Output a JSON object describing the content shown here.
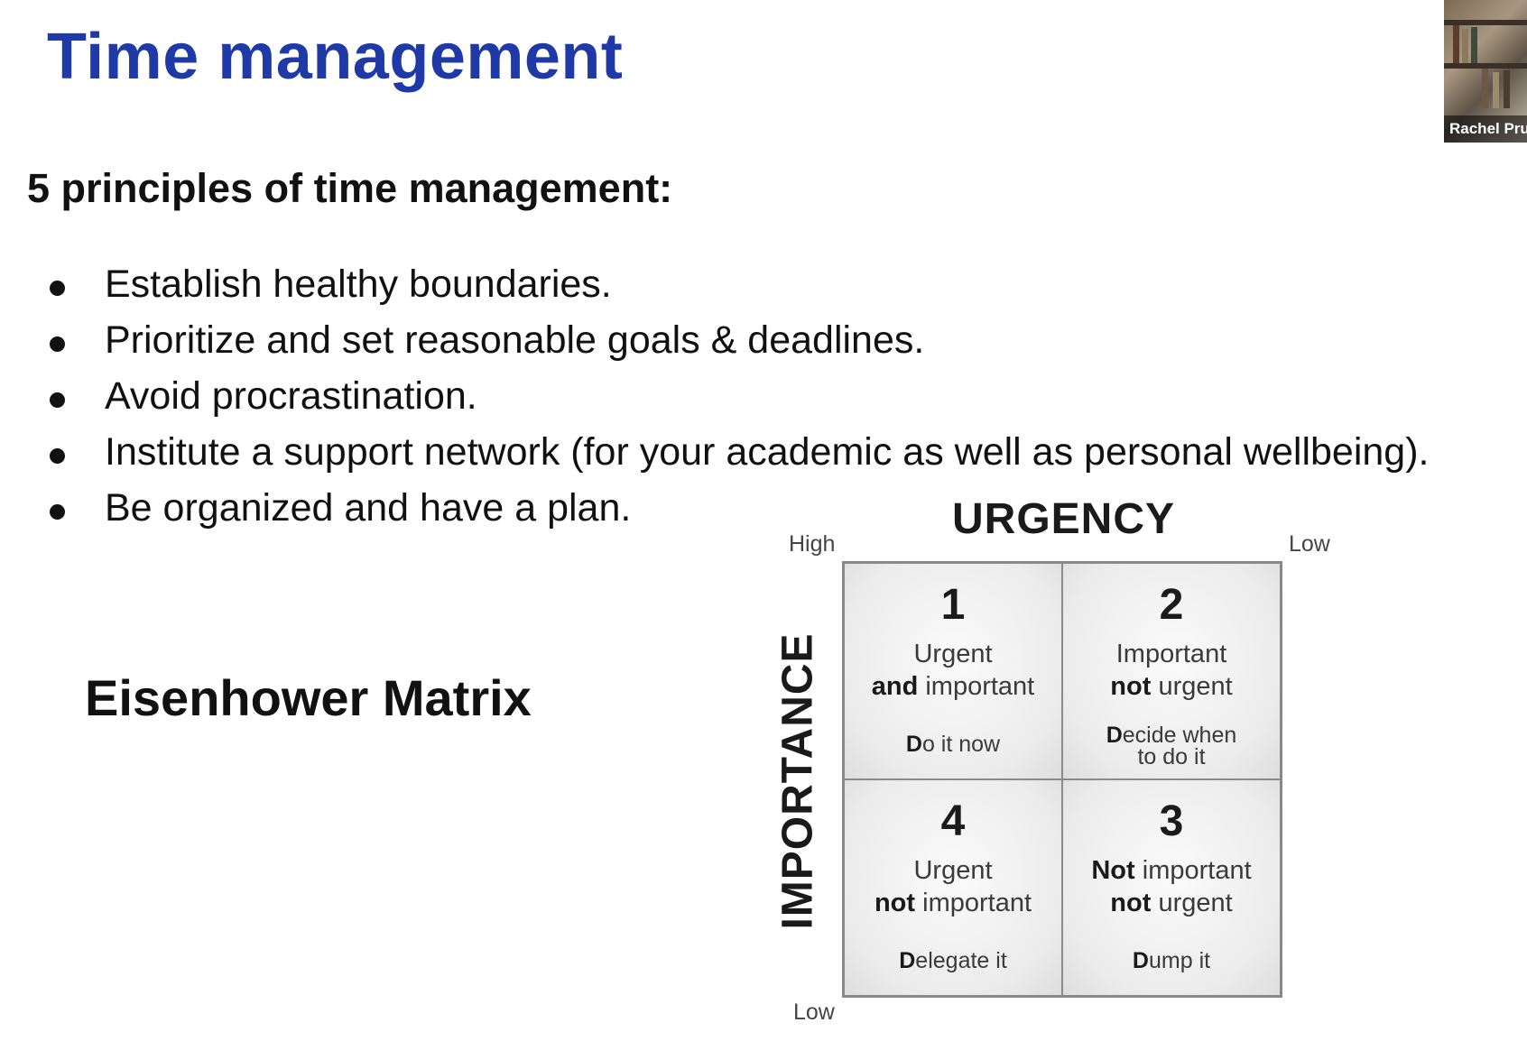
{
  "slide": {
    "title": "Time management",
    "subtitle": "5 principles of time management:",
    "bullets": [
      "Establish healthy boundaries.",
      "Prioritize and set reasonable goals & deadlines.",
      "Avoid procrastination.",
      "Institute a support network (for your academic as well as personal wellbeing).",
      "Be organized and have a plan."
    ],
    "matrix_label": "Eisenhower Matrix",
    "title_color": "#1f3aa6"
  },
  "matrix": {
    "urgency_title": "URGENCY",
    "importance_title": "IMPORTANCE",
    "urgency_high": "High",
    "urgency_low": "Low",
    "importance_low": "Low",
    "quadrants": [
      {
        "number": "1",
        "line1": "Urgent",
        "line2_bold": "and",
        "line2_rest": " important",
        "action_bold": "D",
        "action_rest": "o it now"
      },
      {
        "number": "2",
        "line1": "Important",
        "line2_bold": "not",
        "line2_rest": " urgent",
        "action_bold": "D",
        "action_rest": "ecide when to do it"
      },
      {
        "number": "4",
        "line1": "Urgent",
        "line2_bold": "not",
        "line2_rest": " important",
        "action_bold": "D",
        "action_rest": "elegate it"
      },
      {
        "number": "3",
        "line1_bold": "Not",
        "line1": " important",
        "line2_bold": "not",
        "line2_rest": " urgent",
        "action_bold": "D",
        "action_rest": "ump it"
      }
    ]
  },
  "webcam": {
    "participant_name": "Rachel Pru"
  }
}
